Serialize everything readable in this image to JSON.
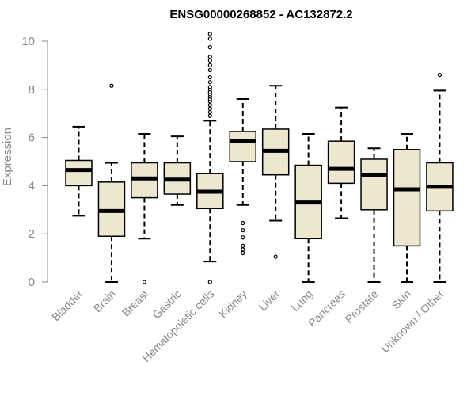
{
  "chart_data": {
    "type": "boxplot",
    "title": "ENSG00000268852 - AC132872.2",
    "ylabel": "Expression",
    "xlabel": "",
    "ylim": [
      0,
      10.3
    ],
    "yticks": [
      0,
      2,
      4,
      6,
      8,
      10
    ],
    "box_fill": "#ede7cf",
    "axis_color": "#888888",
    "categories": [
      "Bladder",
      "Brain",
      "Breast",
      "Gastric",
      "Hematopoietic cells",
      "Kidney",
      "Liver",
      "Lung",
      "Pancreas",
      "Prostate",
      "Skin",
      "Unknown / Other"
    ],
    "boxes": [
      {
        "whisker_low": 2.75,
        "q1": 4.0,
        "median": 4.65,
        "q3": 5.05,
        "whisker_high": 6.45,
        "outliers": []
      },
      {
        "whisker_low": 0.0,
        "q1": 1.9,
        "median": 2.95,
        "q3": 4.15,
        "whisker_high": 4.95,
        "outliers": [
          8.15
        ]
      },
      {
        "whisker_low": 1.8,
        "q1": 3.5,
        "median": 4.3,
        "q3": 4.95,
        "whisker_high": 6.15,
        "outliers": [
          0.0
        ]
      },
      {
        "whisker_low": 3.2,
        "q1": 3.65,
        "median": 4.25,
        "q3": 4.95,
        "whisker_high": 6.05,
        "outliers": []
      },
      {
        "whisker_low": 0.85,
        "q1": 3.05,
        "median": 3.75,
        "q3": 4.5,
        "whisker_high": 6.7,
        "outliers": [
          0.0,
          6.9,
          7.05,
          7.2,
          7.35,
          7.5,
          7.6,
          7.7,
          7.8,
          7.9,
          8.0,
          8.1,
          8.3,
          8.5,
          8.8,
          9.0,
          9.2,
          9.35,
          9.75,
          10.1,
          10.3
        ]
      },
      {
        "whisker_low": 3.2,
        "q1": 5.0,
        "median": 5.85,
        "q3": 6.25,
        "whisker_high": 7.6,
        "outliers": [
          1.2,
          1.35,
          1.5,
          1.85,
          2.15,
          2.45
        ]
      },
      {
        "whisker_low": 2.55,
        "q1": 4.45,
        "median": 5.45,
        "q3": 6.35,
        "whisker_high": 8.15,
        "outliers": [
          1.05
        ]
      },
      {
        "whisker_low": 0.0,
        "q1": 1.8,
        "median": 3.3,
        "q3": 4.85,
        "whisker_high": 6.15,
        "outliers": []
      },
      {
        "whisker_low": 2.65,
        "q1": 4.1,
        "median": 4.7,
        "q3": 5.85,
        "whisker_high": 7.25,
        "outliers": []
      },
      {
        "whisker_low": 0.0,
        "q1": 3.0,
        "median": 4.45,
        "q3": 5.1,
        "whisker_high": 5.55,
        "outliers": []
      },
      {
        "whisker_low": 0.0,
        "q1": 1.5,
        "median": 3.85,
        "q3": 5.5,
        "whisker_high": 6.15,
        "outliers": []
      },
      {
        "whisker_low": 0.0,
        "q1": 2.95,
        "median": 3.95,
        "q3": 4.95,
        "whisker_high": 7.95,
        "outliers": [
          8.6
        ]
      }
    ]
  }
}
